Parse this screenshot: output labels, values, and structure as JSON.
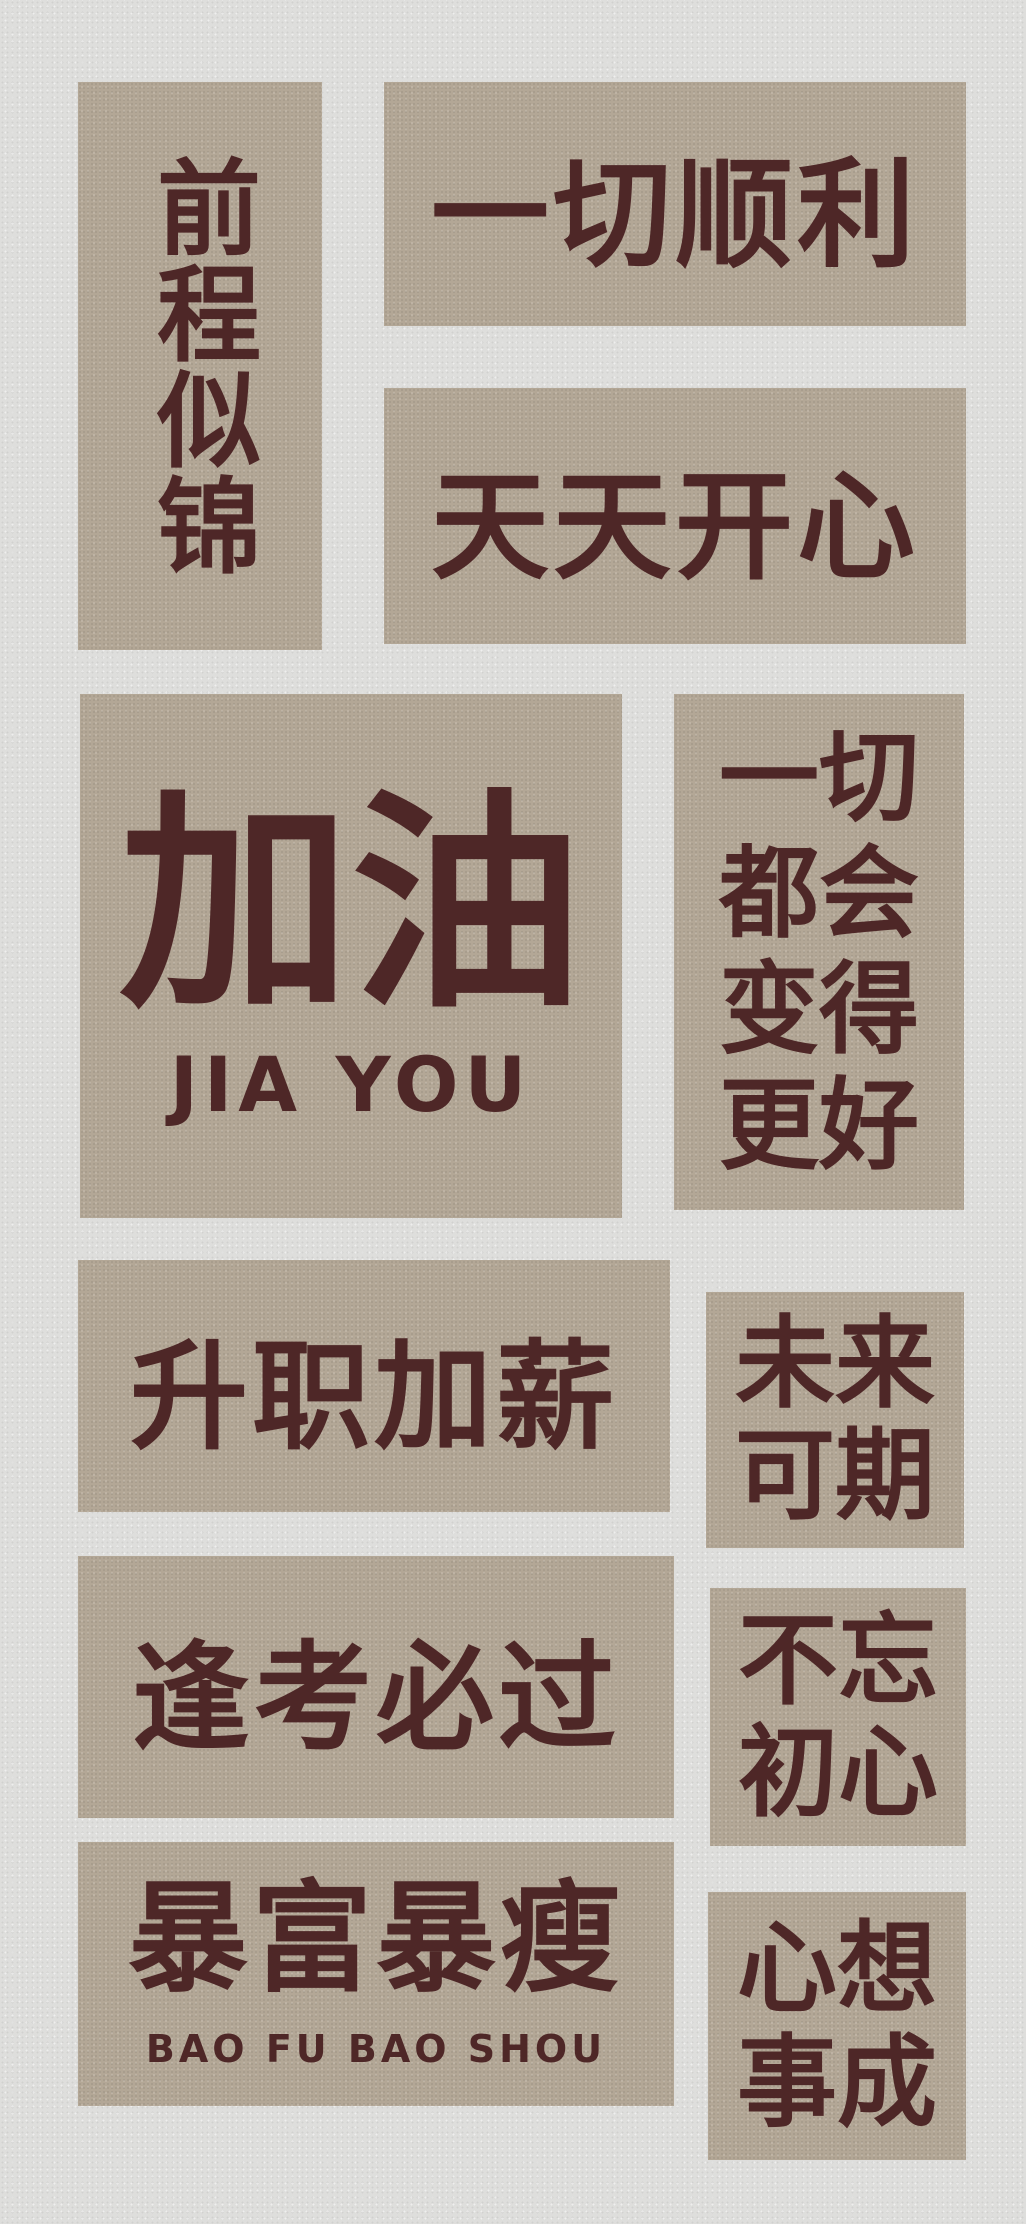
{
  "tiles": {
    "qian_cheng": "前程似锦",
    "yi_qie_shun_li": "一切顺利",
    "tian_tian": "天天开心",
    "jia_you": "加油",
    "jia_you_roman": "JIA YOU",
    "yi_qie_hui": [
      "一",
      "切",
      "都",
      "会",
      "变",
      "得",
      "更",
      "好"
    ],
    "sheng_zhi": "升职加薪",
    "wei_lai": [
      "未",
      "来",
      "可",
      "期"
    ],
    "feng_kao": "逢考必过",
    "bu_wang": [
      "不",
      "忘",
      "初",
      "心"
    ],
    "bao_fu": "暴富暴瘦",
    "bao_fu_roman": "BAO FU BAO SHOU",
    "xin_xiang": [
      "心",
      "想",
      "事",
      "成"
    ]
  },
  "colors": {
    "background": "#dededc",
    "tile": "#b3a796",
    "text": "#4e2727"
  }
}
